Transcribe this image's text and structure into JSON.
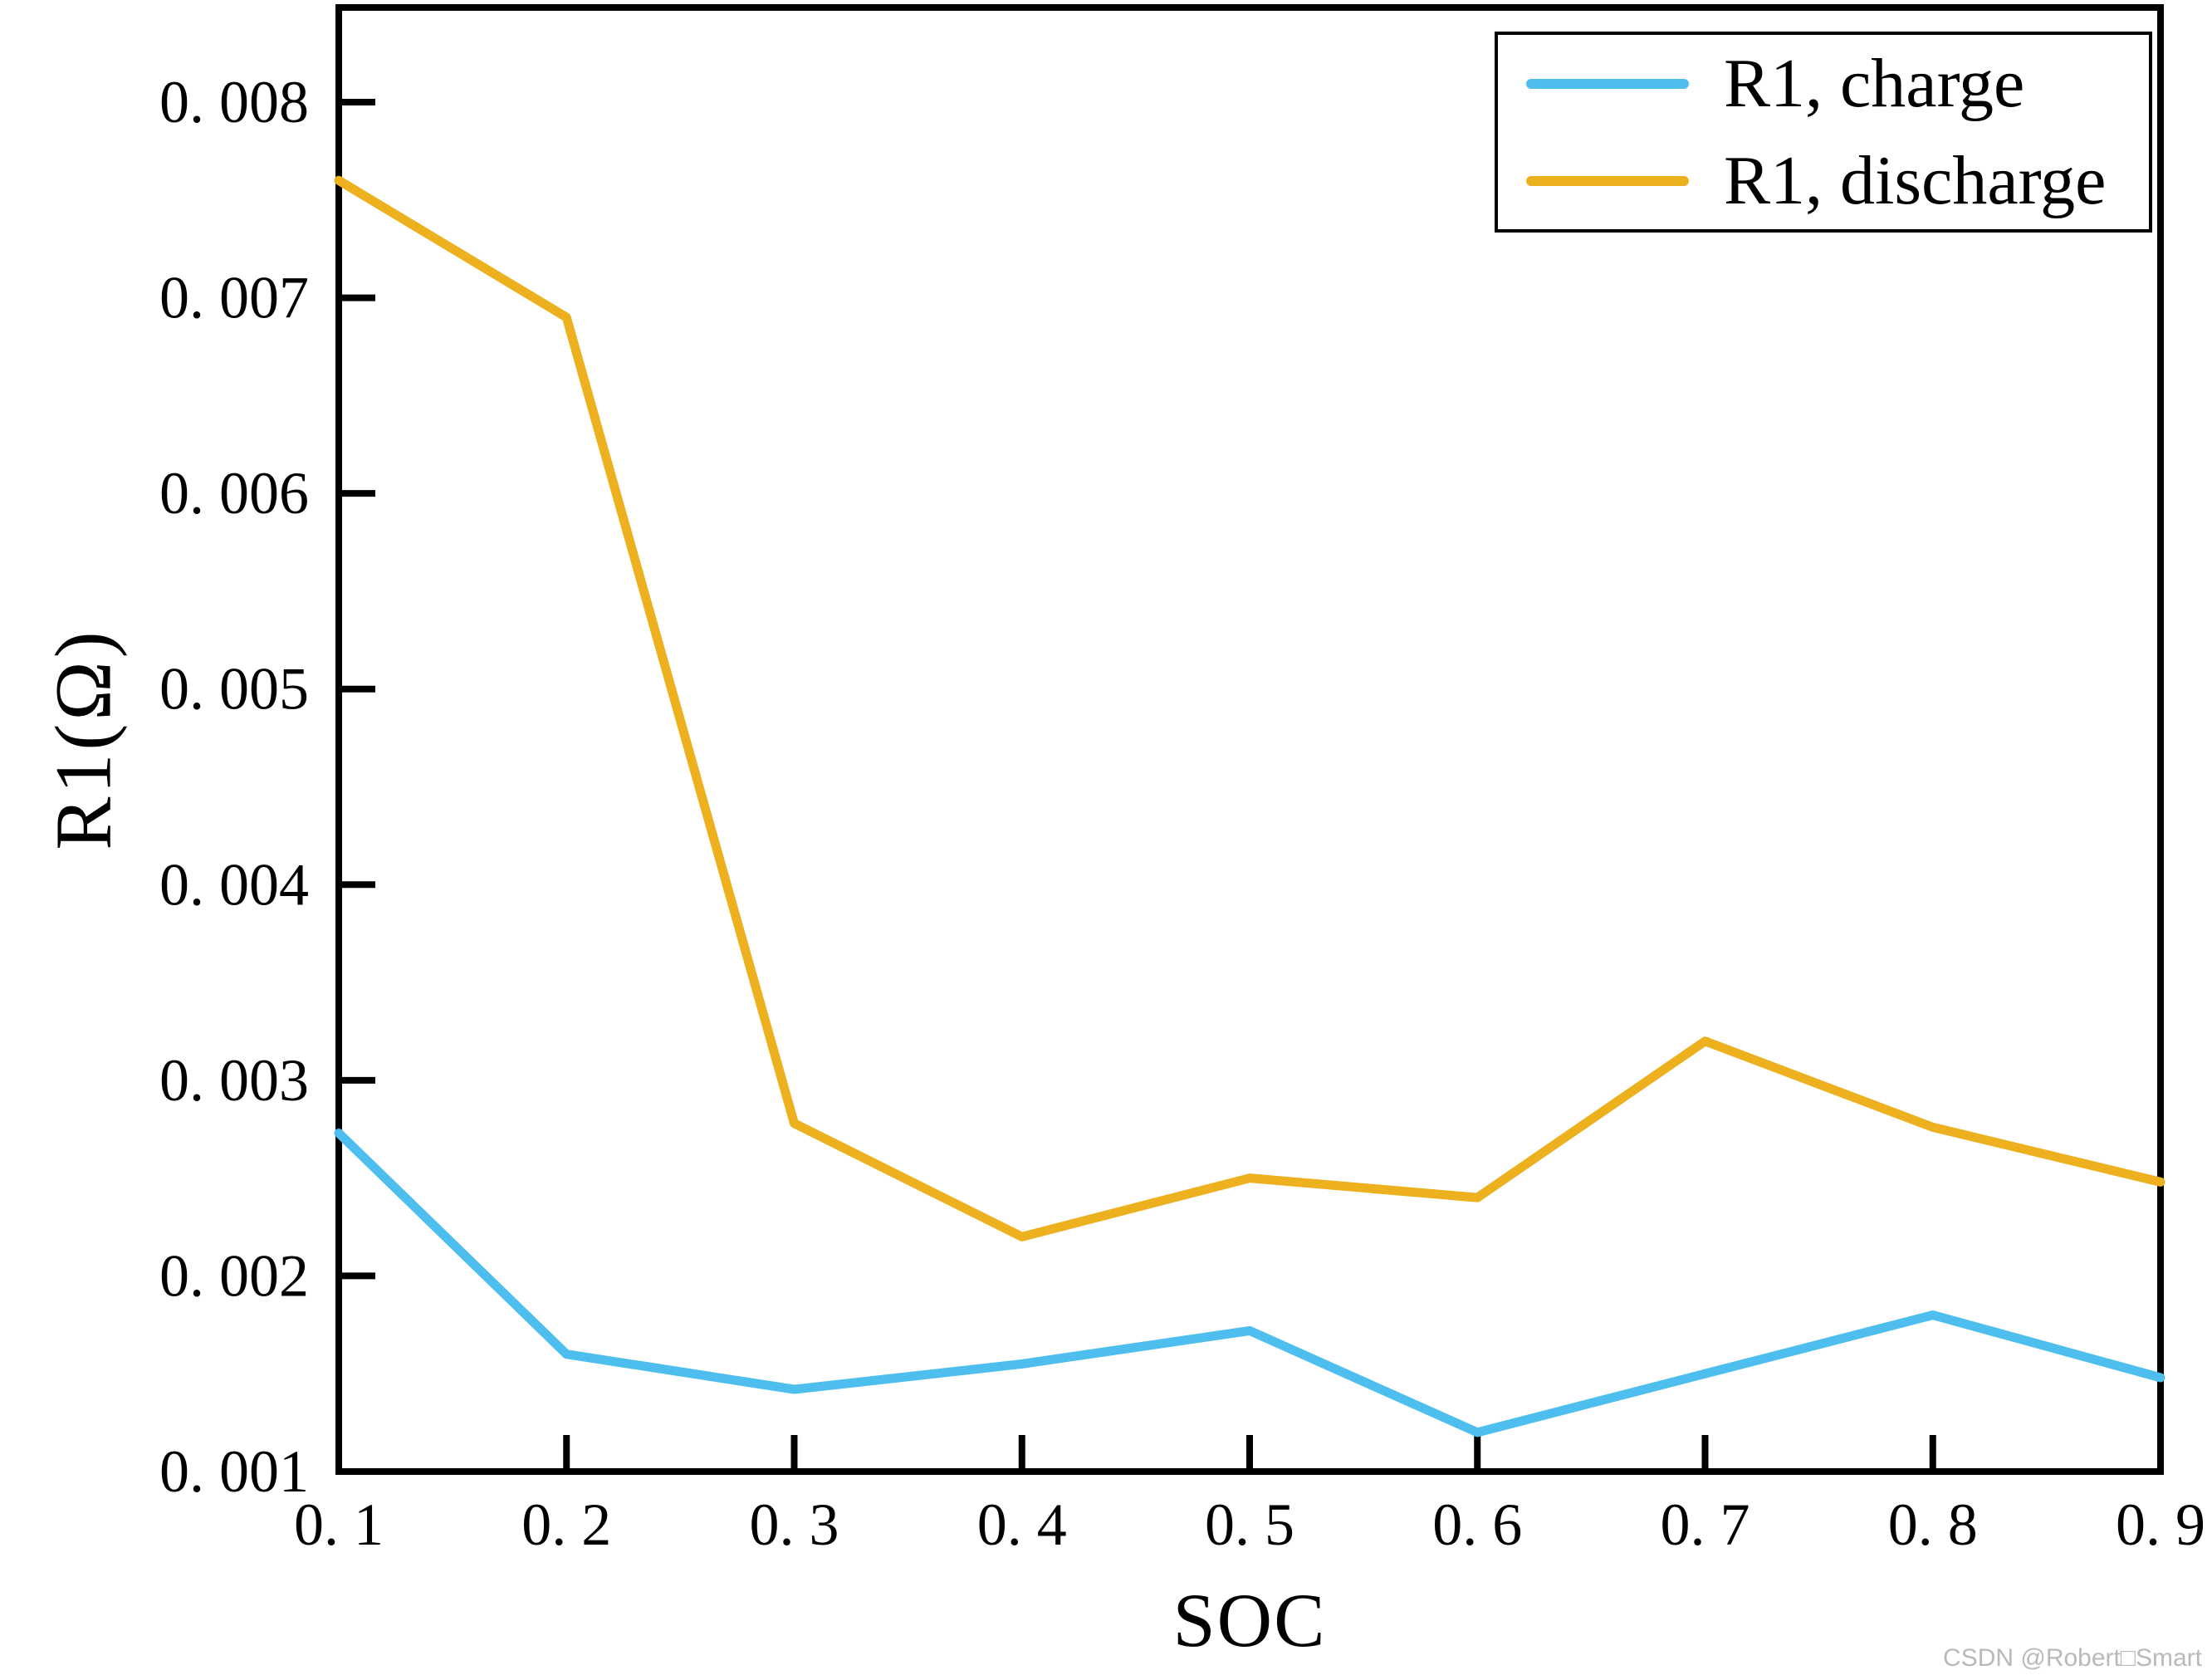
{
  "watermark": {
    "text": "CSDN @Robert□Smart",
    "color": "#b9b9b9"
  },
  "legend": {
    "items": [
      {
        "label": "R1, charge",
        "color": "#4DBEEE"
      },
      {
        "label": "R1, discharge",
        "color": "#EDB120"
      }
    ]
  },
  "chart_data": {
    "type": "line",
    "title": "",
    "xlabel": "SOC",
    "ylabel": "R1(Ω)",
    "x": [
      0.1,
      0.2,
      0.3,
      0.4,
      0.5,
      0.6,
      0.7,
      0.8,
      0.9
    ],
    "series": [
      {
        "name": "R1,charge",
        "color": "#4DBEEE",
        "values": [
          0.00273,
          0.0016,
          0.00142,
          0.00155,
          0.00172,
          0.0012,
          0.0015,
          0.0018,
          0.00148
        ]
      },
      {
        "name": "R1,discharge",
        "color": "#EDB120",
        "values": [
          0.0076,
          0.0069,
          0.00278,
          0.0022,
          0.0025,
          0.0024,
          0.0032,
          0.00276,
          0.00248
        ]
      }
    ],
    "xlim": [
      0.1,
      0.9
    ],
    "ylim": [
      0.001,
      0.00848
    ],
    "xticks": [
      0.1,
      0.2,
      0.3,
      0.4,
      0.5,
      0.6,
      0.7,
      0.8,
      0.9
    ],
    "xtick_labels": [
      "0. 1",
      "0. 2",
      "0. 3",
      "0. 4",
      "0. 5",
      "0. 6",
      "0. 7",
      "0. 8",
      "0. 9"
    ],
    "yticks": [
      0.001,
      0.002,
      0.003,
      0.004,
      0.005,
      0.006,
      0.007,
      0.008
    ],
    "ytick_labels": [
      "0. 001",
      "0. 002",
      "0. 003",
      "0. 004",
      "0. 005",
      "0. 006",
      "0. 007",
      "0. 008"
    ],
    "grid": false,
    "legend_position": "upper right",
    "tick_direction": "in",
    "axis_color": "#000000"
  }
}
